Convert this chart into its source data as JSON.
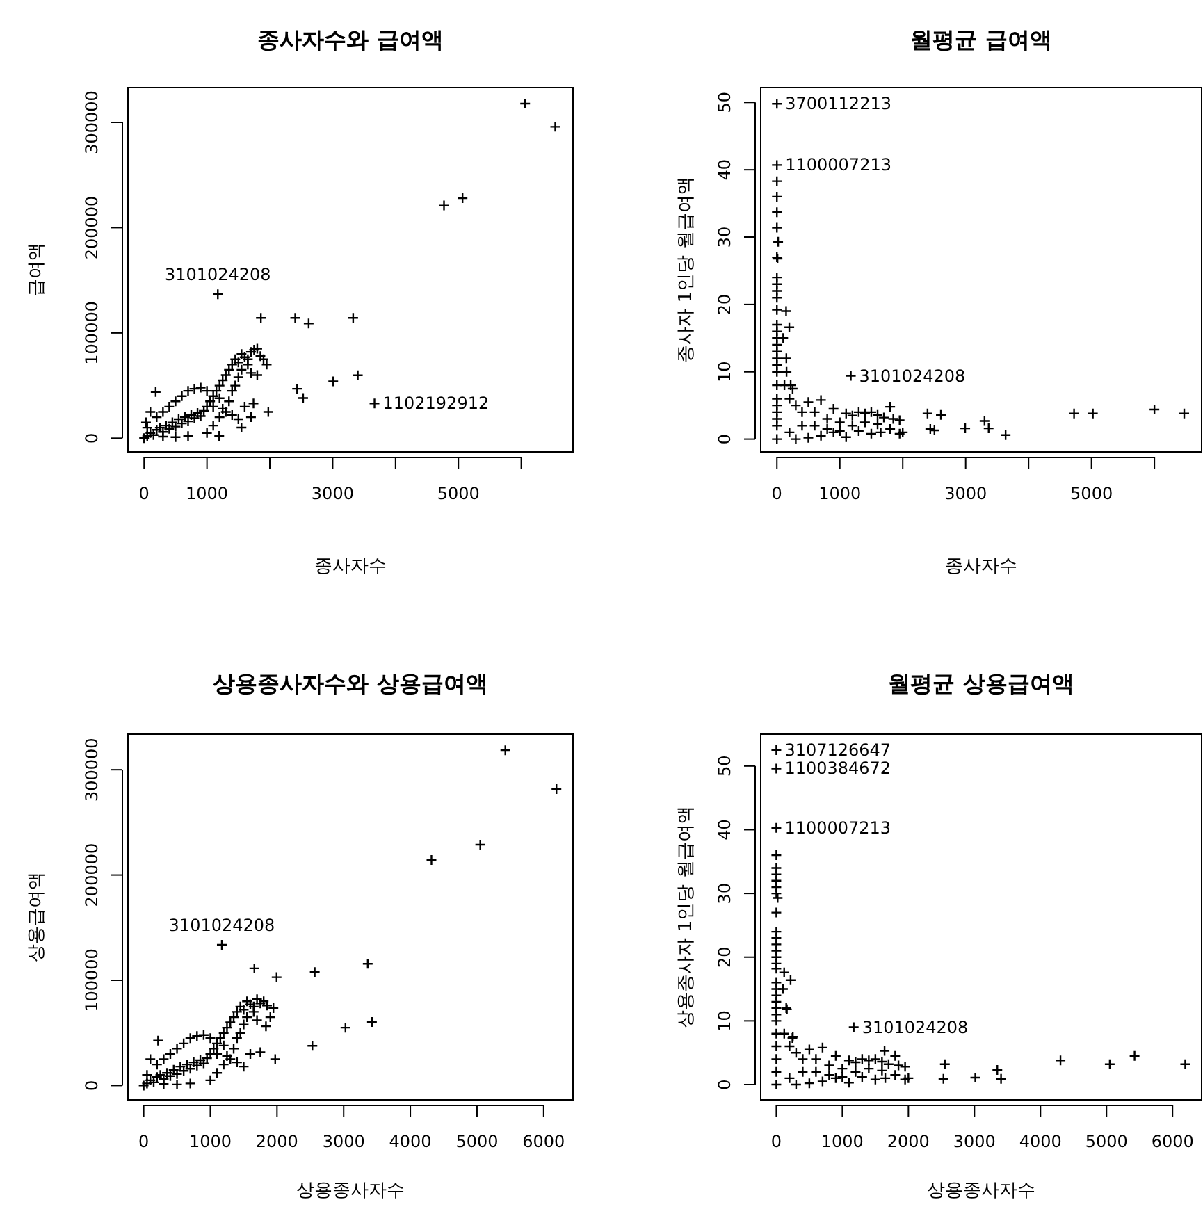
{
  "chart_data": [
    {
      "type": "scatter",
      "title": "종사자수와 급여액",
      "xlabel": "종사자수",
      "ylabel": "급여액",
      "marker": "cross",
      "xlim": [
        -257,
        6823
      ],
      "ylim": [
        -13000,
        333000
      ],
      "xticks": [
        0,
        1000,
        {
          "value": 2000,
          "label": null
        },
        3000,
        {
          "value": 4000,
          "label": null
        },
        5000,
        {
          "value": 6000,
          "label": null
        }
      ],
      "yticks": [
        0,
        100000,
        200000,
        300000
      ],
      "annotations": [
        {
          "text": "3101024208",
          "x": 1173,
          "y": 136700
        },
        {
          "text": "1102192912",
          "x": 3665,
          "y": 33000
        }
      ],
      "x": [
        6062,
        6541,
        4771,
        5066,
        1173,
        1858,
        2404,
        2618,
        3326,
        3009,
        3400,
        2434,
        2530,
        3665,
        1976,
        1740,
        1549,
        1195,
        0,
        50,
        100,
        150,
        200,
        250,
        300,
        350,
        400,
        450,
        500,
        550,
        600,
        650,
        700,
        750,
        800,
        850,
        900,
        950,
        1000,
        1050,
        1100,
        1150,
        1200,
        1250,
        1300,
        1350,
        1400,
        1450,
        1500,
        1550,
        1600,
        1650,
        1700,
        1750,
        1800,
        1900,
        1800,
        1700,
        1500,
        1400,
        1200,
        1100,
        1000,
        900,
        800,
        700,
        600,
        500,
        400,
        300,
        200,
        184,
        100,
        50,
        30,
        1200,
        1300,
        1400,
        1500,
        1600,
        1700,
        1000,
        700,
        500,
        300,
        1100,
        1250,
        1350,
        1450,
        1550,
        1650,
        1850,
        1950
      ],
      "values": [
        317800,
        295800,
        221000,
        228000,
        136700,
        114300,
        114300,
        109000,
        114300,
        54000,
        59800,
        47000,
        38200,
        33000,
        25000,
        33000,
        10100,
        2200,
        0,
        2000,
        5000,
        3000,
        8000,
        10000,
        6000,
        12000,
        9000,
        15000,
        11000,
        18000,
        14000,
        20000,
        16000,
        22000,
        19000,
        24000,
        21000,
        26000,
        30000,
        35000,
        40000,
        45000,
        50000,
        55000,
        60000,
        65000,
        70000,
        75000,
        72000,
        80000,
        77000,
        70000,
        82000,
        84000,
        85000,
        75000,
        60000,
        62000,
        58000,
        45000,
        38000,
        30000,
        45000,
        48000,
        47000,
        45000,
        40000,
        35000,
        30000,
        25000,
        20000,
        44000,
        25000,
        10000,
        15000,
        20000,
        25000,
        22000,
        18000,
        30000,
        20000,
        5000,
        2000,
        1000,
        1500,
        12000,
        28000,
        35000,
        50000,
        65000,
        75000,
        78000,
        70000
      ]
    },
    {
      "type": "scatter",
      "title": "월평균 급여액",
      "xlabel": "종사자수",
      "ylabel": "종사자 1인당 월급여액",
      "marker": "cross",
      "xlim": [
        -257,
        6750
      ],
      "ylim": [
        -1.9,
        52.2
      ],
      "xticks": [
        0,
        1000,
        {
          "value": 2000,
          "label": null
        },
        3000,
        {
          "value": 4000,
          "label": null
        },
        5000,
        {
          "value": 6000,
          "label": null
        }
      ],
      "yticks": [
        0,
        10,
        20,
        30,
        40,
        50
      ],
      "annotations": [
        {
          "text": "3700112213",
          "x": 0,
          "y": 49.8
        },
        {
          "text": "1100007213",
          "x": 0,
          "y": 40.7
        },
        {
          "text": "3101024208",
          "x": 1175,
          "y": 9.4
        }
      ],
      "x": [
        0,
        0,
        1175,
        0,
        0,
        0,
        0,
        20,
        0,
        10,
        0,
        0,
        0,
        0,
        0,
        0,
        0,
        0,
        0,
        0,
        0,
        0,
        0,
        0,
        0,
        0,
        0,
        0,
        0,
        0,
        146,
        197,
        153,
        219,
        2394,
        2606,
        2438,
        2504,
        2993,
        3300,
        3365,
        3635,
        4723,
        5022,
        6000,
        6474,
        100,
        150,
        120,
        200,
        250,
        300,
        400,
        500,
        600,
        700,
        800,
        900,
        1000,
        1100,
        1200,
        1300,
        1400,
        1500,
        1600,
        1700,
        1800,
        1850,
        1950,
        1650,
        1500,
        1300,
        1100,
        900,
        700,
        500,
        300,
        200,
        400,
        600,
        800,
        1000,
        1200,
        1400,
        1600,
        1800,
        2000,
        1950
      ],
      "values": [
        49.8,
        40.7,
        9.4,
        38.3,
        36,
        33.7,
        31.4,
        29.3,
        27,
        26.8,
        24,
        23,
        22,
        21,
        19.2,
        17,
        16,
        15,
        14,
        13,
        12,
        11,
        10,
        8,
        6,
        5,
        4,
        3,
        2,
        0,
        19,
        16.6,
        10,
        8,
        3.8,
        3.6,
        1.5,
        1.3,
        1.6,
        2.7,
        1.6,
        0.6,
        3.8,
        3.8,
        4.4,
        3.8,
        15,
        12,
        8,
        6,
        7.5,
        5,
        4,
        5.5,
        4,
        5.8,
        3,
        4.5,
        2.5,
        3.8,
        3.5,
        4,
        3.8,
        4,
        3.6,
        3.2,
        4.8,
        3,
        2.8,
        1,
        0.8,
        1.2,
        0.3,
        1,
        0.5,
        0.2,
        0,
        1,
        2,
        2,
        1.5,
        1.2,
        2,
        2.5,
        2.2,
        1.5,
        1,
        0.8
      ]
    },
    {
      "type": "scatter",
      "title": "상용종사자수와 상용급여액",
      "xlabel": "상용종사자수",
      "ylabel": "상용급여액",
      "marker": "cross",
      "xlim": [
        -236,
        6440
      ],
      "ylim": [
        -13600,
        333800
      ],
      "xticks": [
        0,
        1000,
        2000,
        3000,
        4000,
        5000,
        6000
      ],
      "yticks": [
        0,
        100000,
        200000,
        300000
      ],
      "annotations": [
        {
          "text": "3101024208",
          "x": 1172,
          "y": 133700
        }
      ],
      "x": [
        5425,
        6192,
        5049,
        4317,
        1172,
        1660,
        1994,
        2566,
        3361,
        3027,
        3424,
        2531,
        1946,
        1834,
        1750,
        1973,
        216,
        0,
        50,
        100,
        150,
        200,
        250,
        300,
        350,
        400,
        450,
        500,
        550,
        600,
        650,
        700,
        750,
        800,
        850,
        900,
        950,
        1000,
        1050,
        1100,
        1150,
        1200,
        1250,
        1300,
        1350,
        1400,
        1450,
        1500,
        1550,
        1600,
        1650,
        1700,
        1750,
        1800,
        1900,
        1700,
        1500,
        1400,
        1200,
        1100,
        1000,
        900,
        800,
        700,
        600,
        500,
        400,
        300,
        200,
        100,
        50,
        1200,
        1300,
        1400,
        1500,
        1600,
        1000,
        700,
        500,
        300,
        1100,
        1250,
        1350,
        1450,
        1550,
        1650,
        1850
      ],
      "values": [
        318500,
        281600,
        228800,
        214300,
        133700,
        111300,
        102900,
        107800,
        115700,
        55000,
        60300,
        37800,
        73500,
        56300,
        31700,
        25100,
        42700,
        0,
        2000,
        5000,
        3000,
        8000,
        10000,
        6000,
        12000,
        9000,
        15000,
        11000,
        18000,
        14000,
        20000,
        16000,
        22000,
        19000,
        24000,
        21000,
        26000,
        30000,
        35000,
        40000,
        45000,
        50000,
        55000,
        60000,
        65000,
        70000,
        75000,
        72000,
        80000,
        77000,
        70000,
        82000,
        78000,
        80000,
        65000,
        62000,
        58000,
        45000,
        38000,
        30000,
        45000,
        48000,
        47000,
        45000,
        40000,
        35000,
        30000,
        25000,
        20000,
        25000,
        10000,
        20000,
        25000,
        22000,
        18000,
        30000,
        5000,
        2000,
        1000,
        1500,
        12000,
        28000,
        35000,
        50000,
        65000,
        75000,
        76000
      ]
    },
    {
      "type": "scatter",
      "title": "월평균 상용급여액",
      "xlabel": "상용종사자수",
      "ylabel": "상용종사자 1인당 월급여액",
      "marker": "cross",
      "xlim": [
        -236,
        6440
      ],
      "ylim": [
        -2.4,
        55
      ],
      "xticks": [
        0,
        1000,
        2000,
        3000,
        4000,
        5000,
        6000
      ],
      "yticks": [
        0,
        10,
        20,
        30,
        40,
        50
      ],
      "annotations": [
        {
          "text": "3107126647",
          "x": 0,
          "y": 52.5
        },
        {
          "text": "1100384672",
          "x": 0,
          "y": 49.6
        },
        {
          "text": "1100007213",
          "x": 0,
          "y": 40.3
        },
        {
          "text": "3101024208",
          "x": 1172,
          "y": 9
        }
      ],
      "x": [
        0,
        0,
        0,
        1172,
        0,
        0,
        0,
        0,
        0,
        0,
        20,
        0,
        0,
        0,
        0,
        0,
        0,
        0,
        0,
        0,
        0,
        0,
        0,
        0,
        0,
        0,
        0,
        0,
        0,
        0,
        0,
        119,
        216,
        160,
        244,
        2552,
        2531,
        3013,
        3347,
        3403,
        4303,
        5049,
        5425,
        6192,
        1639,
        100,
        150,
        120,
        200,
        250,
        300,
        400,
        500,
        600,
        700,
        800,
        900,
        1000,
        1100,
        1200,
        1300,
        1400,
        1500,
        1600,
        1700,
        1800,
        1850,
        1950,
        1650,
        1500,
        1300,
        1100,
        900,
        700,
        500,
        300,
        200,
        400,
        600,
        800,
        1000,
        1200,
        1400,
        1600,
        1800,
        2000,
        1950
      ],
      "values": [
        52.5,
        49.6,
        40.3,
        9,
        36,
        34,
        33,
        32,
        31,
        30,
        29.3,
        27,
        24,
        23,
        22,
        21,
        20,
        19,
        18.2,
        16,
        15,
        14,
        13,
        12,
        11,
        10,
        8,
        6,
        4,
        2,
        0,
        17.6,
        16.4,
        11.8,
        7.3,
        3.2,
        0.9,
        1.1,
        2.3,
        0.9,
        3.8,
        3.2,
        4.5,
        3.2,
        5.3,
        15,
        12,
        8,
        6,
        7.5,
        5,
        4,
        5.5,
        4,
        5.8,
        3,
        4.5,
        2.5,
        3.8,
        3.5,
        4,
        3.8,
        4,
        3.6,
        3.2,
        4.5,
        3,
        2.8,
        1,
        0.8,
        1.2,
        0.3,
        1,
        0.5,
        0.2,
        0,
        1,
        2,
        2,
        1.5,
        1.2,
        2,
        2.5,
        2.2,
        1.5,
        1,
        0.8
      ]
    }
  ]
}
